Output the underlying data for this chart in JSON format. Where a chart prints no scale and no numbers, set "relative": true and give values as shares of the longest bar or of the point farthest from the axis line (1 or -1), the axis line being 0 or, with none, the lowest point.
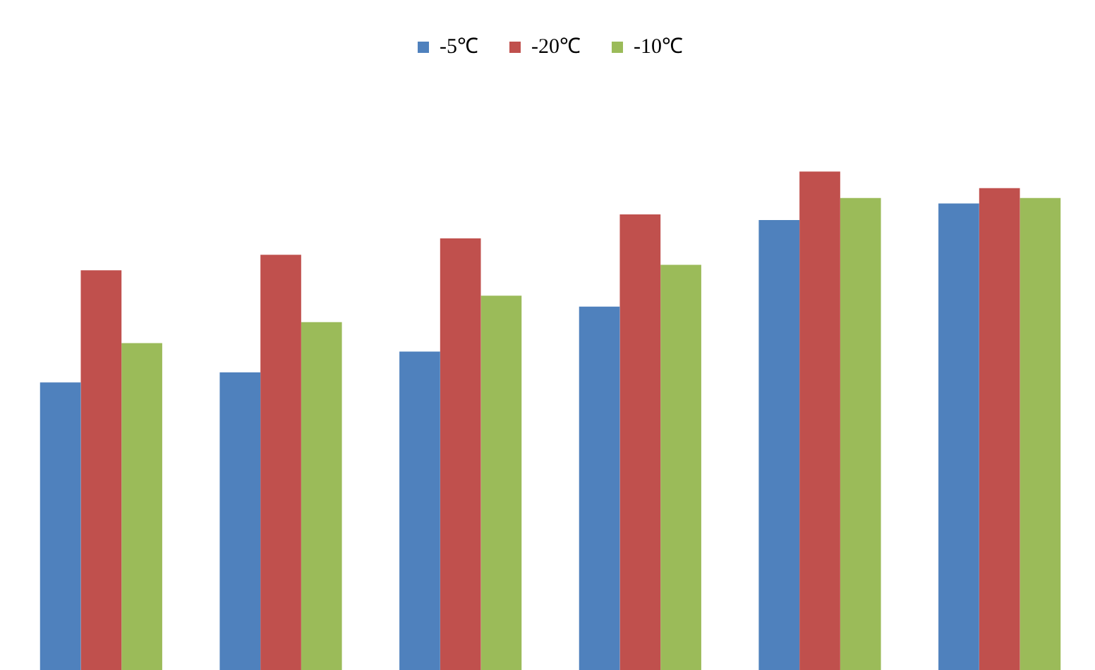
{
  "chart_data": {
    "type": "bar",
    "relative": true,
    "categories": [
      null,
      null,
      null,
      null,
      null,
      null
    ],
    "legend": "top",
    "grid": false,
    "series": [
      {
        "name": "-5℃",
        "color": "#4f81bd",
        "values": [
          0.577,
          0.597,
          0.639,
          0.729,
          0.903,
          0.936
        ]
      },
      {
        "name": "-20℃",
        "color": "#c0504d",
        "values": [
          0.802,
          0.833,
          0.866,
          0.914,
          1,
          0.967
        ]
      },
      {
        "name": "-10℃",
        "color": "#9bbb59",
        "values": [
          0.656,
          0.698,
          0.751,
          0.813,
          0.947,
          0.947
        ]
      }
    ]
  }
}
